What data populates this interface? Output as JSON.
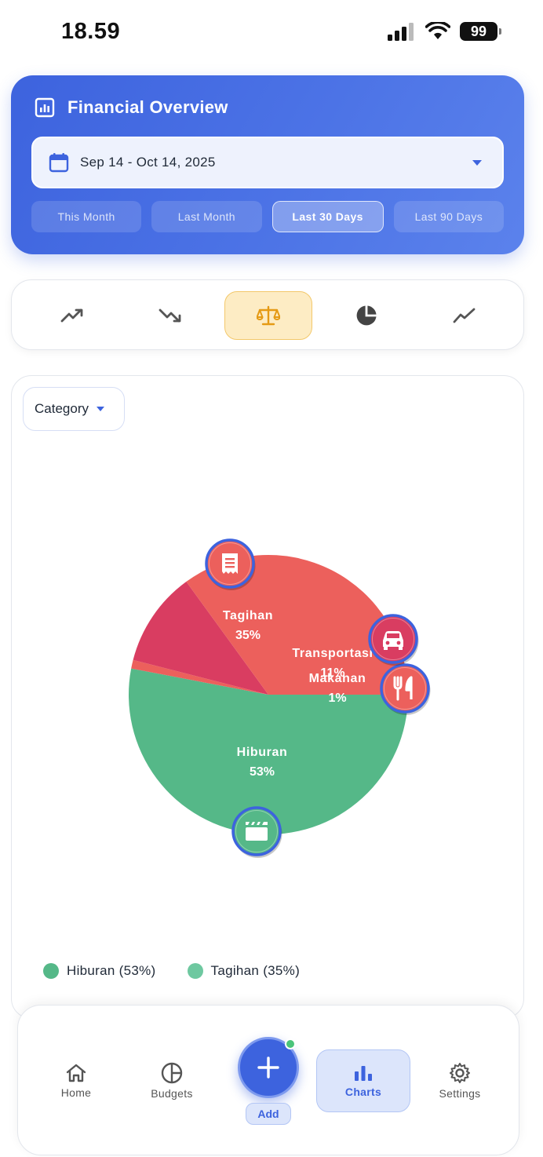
{
  "status_bar": {
    "time": "18.59",
    "battery": "99"
  },
  "overview": {
    "title": "Financial Overview",
    "date_range": "Sep 14 - Oct 14, 2025",
    "range_tabs": [
      {
        "label": "This Month",
        "active": false
      },
      {
        "label": "Last Month",
        "active": false
      },
      {
        "label": "Last 30 Days",
        "active": true
      },
      {
        "label": "Last 90 Days",
        "active": false
      }
    ]
  },
  "chart_types": [
    {
      "icon": "trending-up-icon",
      "active": false
    },
    {
      "icon": "trending-down-icon",
      "active": false
    },
    {
      "icon": "balance-scale-icon",
      "active": true
    },
    {
      "icon": "pie-chart-icon",
      "active": false
    },
    {
      "icon": "line-chart-icon",
      "active": false
    }
  ],
  "category_select": {
    "value": "Category"
  },
  "chart_data": {
    "type": "pie",
    "slices": [
      {
        "label": "Hiburan",
        "value": 53,
        "pct_label": "53%",
        "color": "#55b888",
        "icon": "clapperboard-icon"
      },
      {
        "label": "Makanan",
        "value": 1,
        "pct_label": "1%",
        "color": "#ec605c",
        "icon": "fork-knife-icon"
      },
      {
        "label": "Transportasi",
        "value": 11,
        "pct_label": "11%",
        "color": "#d93d61",
        "icon": "car-icon"
      },
      {
        "label": "Tagihan",
        "value": 35,
        "pct_label": "35%",
        "color": "#ec605c",
        "icon": "receipt-icon"
      }
    ]
  },
  "legend": [
    {
      "label": "Hiburan (53%)",
      "color": "#55b888"
    },
    {
      "label": "Tagihan (35%)",
      "color": "#6ec8a0"
    }
  ],
  "nav": {
    "home": "Home",
    "budgets": "Budgets",
    "add": "Add",
    "charts": "Charts",
    "settings": "Settings"
  },
  "colors": {
    "accent": "#3d63de",
    "highlight": "#fdecc4"
  }
}
